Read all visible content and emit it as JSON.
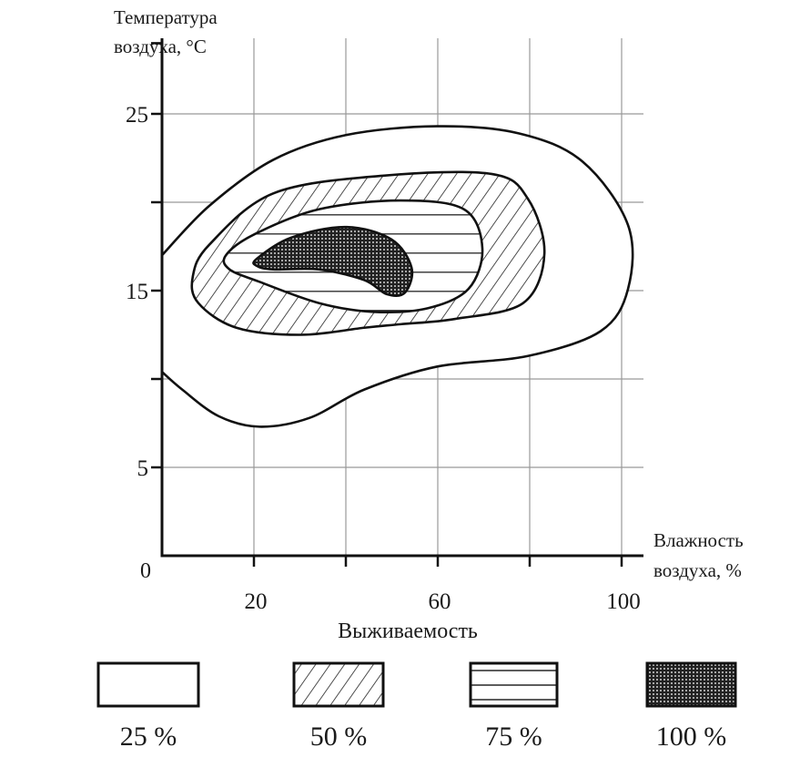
{
  "chart_data": {
    "type": "area",
    "subtype": "contour-regions",
    "ylabel": [
      "Температура",
      "воздуха, °C"
    ],
    "xlabel": [
      "Влажность",
      "воздуха, %"
    ],
    "origin_label": "0",
    "xlim": [
      0,
      105
    ],
    "ylim": [
      0,
      29.5
    ],
    "x_grid": [
      20,
      40,
      60,
      80,
      100
    ],
    "y_grid": [
      5,
      10,
      15,
      20,
      25
    ],
    "x_tick_labels": [
      {
        "value": 20,
        "label": "20"
      },
      {
        "value": 60,
        "label": "60"
      },
      {
        "value": 100,
        "label": "100"
      }
    ],
    "y_tick_labels": [
      {
        "value": 25,
        "label": "25"
      },
      {
        "value": 15,
        "label": "15"
      },
      {
        "value": 5,
        "label": "5"
      }
    ],
    "grid": true,
    "legend_title": "Выживаемость",
    "legend_position": "bottom",
    "series": [
      {
        "name": "25 %",
        "pattern": "blank",
        "open_on_axis": true,
        "points": [
          [
            0,
            17.0
          ],
          [
            10.3,
            19.8
          ],
          [
            24.2,
            22.4
          ],
          [
            40,
            23.8
          ],
          [
            59.8,
            24.3
          ],
          [
            77.6,
            23.9
          ],
          [
            91.5,
            22.3
          ],
          [
            101.4,
            18.7
          ],
          [
            101.4,
            15.1
          ],
          [
            95.4,
            12.7
          ],
          [
            79.6,
            11.3
          ],
          [
            59.8,
            10.7
          ],
          [
            44,
            9.4
          ],
          [
            32.1,
            7.8
          ],
          [
            21.2,
            7.3
          ],
          [
            12.3,
            7.9
          ],
          [
            4.4,
            9.4
          ],
          [
            0,
            10.4
          ]
        ]
      },
      {
        "name": "50 %",
        "pattern": "diagonal",
        "points": [
          [
            6.7,
            15.8
          ],
          [
            10.3,
            17.6
          ],
          [
            24.2,
            20.5
          ],
          [
            47.9,
            21.5
          ],
          [
            71.7,
            21.6
          ],
          [
            79.6,
            20.2
          ],
          [
            83.2,
            17.1
          ],
          [
            78.6,
            14.3
          ],
          [
            63.8,
            13.4
          ],
          [
            51.9,
            13.1
          ],
          [
            44,
            12.9
          ],
          [
            30.1,
            12.5
          ],
          [
            16.2,
            12.9
          ],
          [
            7.9,
            14.3
          ]
        ]
      },
      {
        "name": "75 %",
        "pattern": "horizontal",
        "points": [
          [
            13.9,
            17.0
          ],
          [
            20.2,
            18.2
          ],
          [
            34.1,
            19.6
          ],
          [
            51.9,
            20.1
          ],
          [
            65.7,
            19.6
          ],
          [
            69.7,
            17.4
          ],
          [
            66.7,
            15.1
          ],
          [
            57.8,
            14.0
          ],
          [
            45.9,
            13.8
          ],
          [
            34.1,
            14.3
          ],
          [
            21.2,
            15.5
          ],
          [
            14.7,
            16.2
          ]
        ]
      },
      {
        "name": "100 %",
        "pattern": "dots",
        "points": [
          [
            20.6,
            16.8
          ],
          [
            28.1,
            18.0
          ],
          [
            40,
            18.6
          ],
          [
            49.9,
            17.9
          ],
          [
            54.3,
            16.3
          ],
          [
            52.9,
            14.9
          ],
          [
            48.9,
            14.8
          ],
          [
            44,
            15.6
          ],
          [
            34.1,
            16.2
          ],
          [
            24.2,
            16.2
          ],
          [
            20.6,
            16.4
          ]
        ]
      }
    ]
  }
}
